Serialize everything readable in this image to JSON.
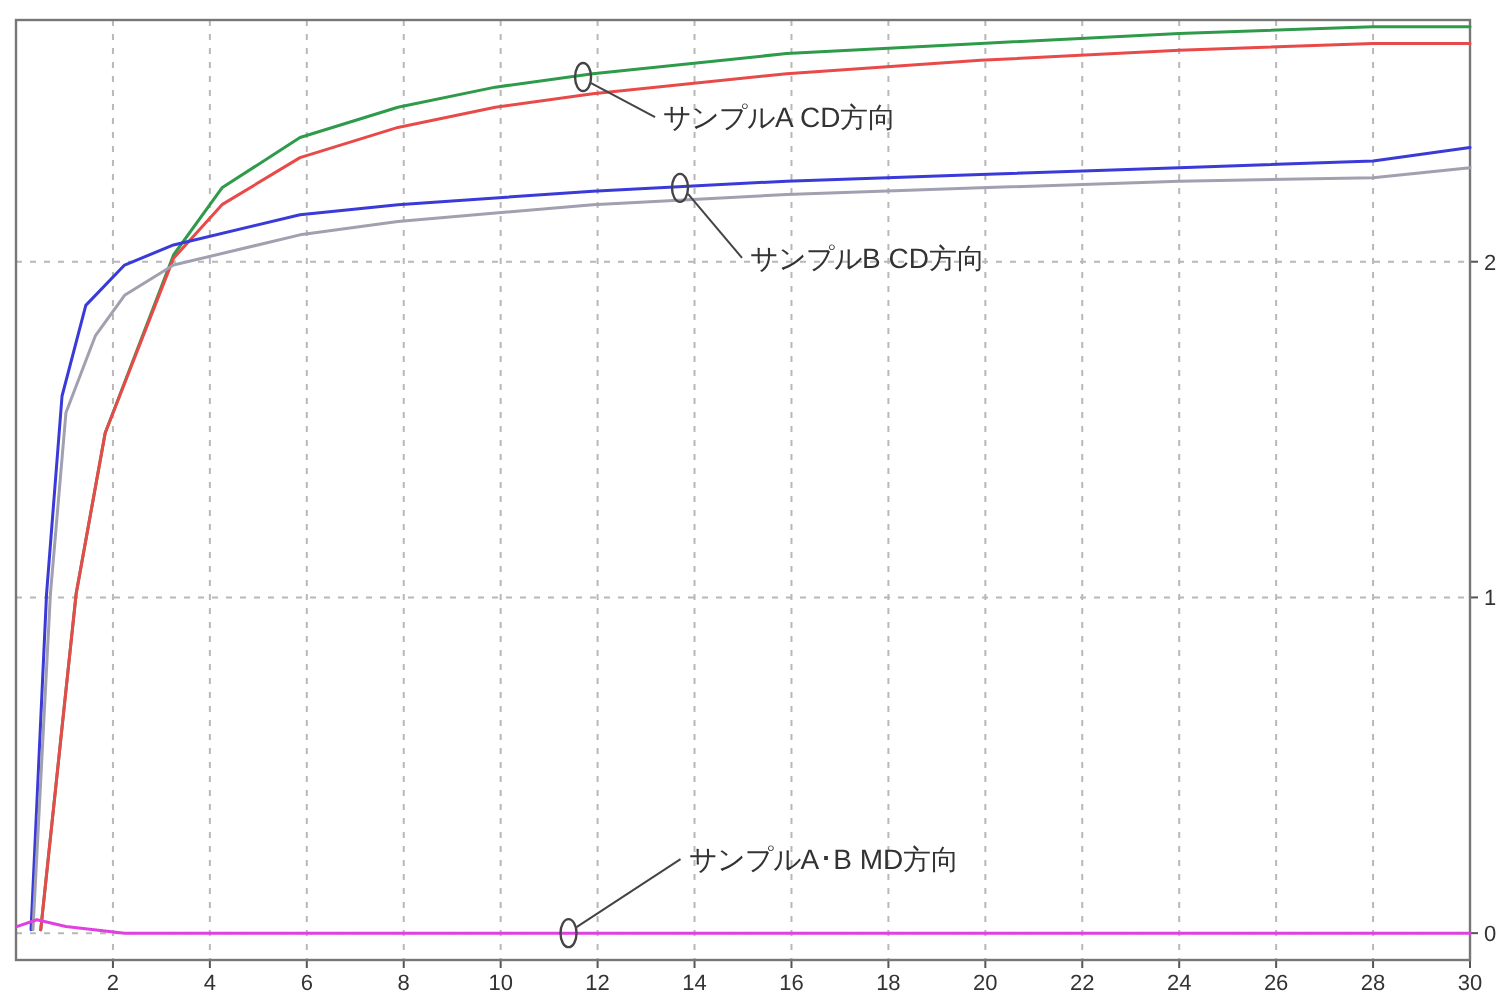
{
  "chart_data": {
    "type": "line",
    "xlim": [
      0,
      30
    ],
    "xticks": [
      2,
      4,
      6,
      8,
      10,
      12,
      14,
      16,
      18,
      20,
      22,
      24,
      26,
      28,
      30
    ],
    "ylim": [
      -0.08,
      2.72
    ],
    "yticks": [
      0,
      1,
      2
    ],
    "grid": true,
    "marker": "none",
    "line_style": "solid",
    "series": [
      {
        "color": "#2e9a4a",
        "x": [
          0.51,
          1.24,
          1.84,
          3.25,
          4.25,
          5.86,
          7.88,
          9.89,
          11.9,
          15.9,
          19.9,
          24.0,
          28.0,
          30.0
        ],
        "values": [
          0.01,
          1.01,
          1.49,
          2.02,
          2.22,
          2.37,
          2.46,
          2.52,
          2.56,
          2.62,
          2.65,
          2.68,
          2.7,
          2.7
        ]
      },
      {
        "color": "#e84a4a",
        "x": [
          0.51,
          1.24,
          1.84,
          3.25,
          4.25,
          5.86,
          7.88,
          9.89,
          11.9,
          15.9,
          19.9,
          24.0,
          28.0,
          30.0
        ],
        "values": [
          0.01,
          1.01,
          1.49,
          2.01,
          2.17,
          2.31,
          2.4,
          2.46,
          2.5,
          2.56,
          2.6,
          2.63,
          2.65,
          2.65
        ]
      },
      {
        "color": "#3a3ad8",
        "x": [
          0.31,
          0.63,
          0.95,
          1.44,
          2.24,
          3.25,
          5.86,
          7.88,
          11.9,
          15.9,
          19.9,
          24.0,
          28.0,
          30.0
        ],
        "values": [
          0.01,
          1.01,
          1.6,
          1.87,
          1.99,
          2.05,
          2.14,
          2.17,
          2.21,
          2.24,
          2.26,
          2.28,
          2.3,
          2.34
        ]
      },
      {
        "color": "#a0a0b0",
        "x": [
          0.35,
          0.71,
          1.03,
          1.64,
          2.24,
          3.25,
          5.86,
          7.88,
          11.9,
          15.9,
          19.9,
          24.0,
          28.0,
          30.0
        ],
        "values": [
          0.01,
          1.01,
          1.55,
          1.78,
          1.9,
          1.99,
          2.08,
          2.12,
          2.17,
          2.2,
          2.22,
          2.24,
          2.25,
          2.28
        ]
      },
      {
        "color": "#e040e0",
        "x": [
          0.03,
          0.43,
          1.03,
          2.24,
          30.0
        ],
        "values": [
          0.02,
          0.04,
          0.02,
          0,
          0
        ]
      }
    ],
    "annotations": [
      {
        "text": "サンプルA CD方向",
        "x": 11.7,
        "y": 2.55
      },
      {
        "text": "サンプルB CD方向",
        "x": 13.7,
        "y": 2.22
      },
      {
        "text": "サンプルA･B MD方向",
        "x": 11.4,
        "y": 0
      }
    ]
  }
}
